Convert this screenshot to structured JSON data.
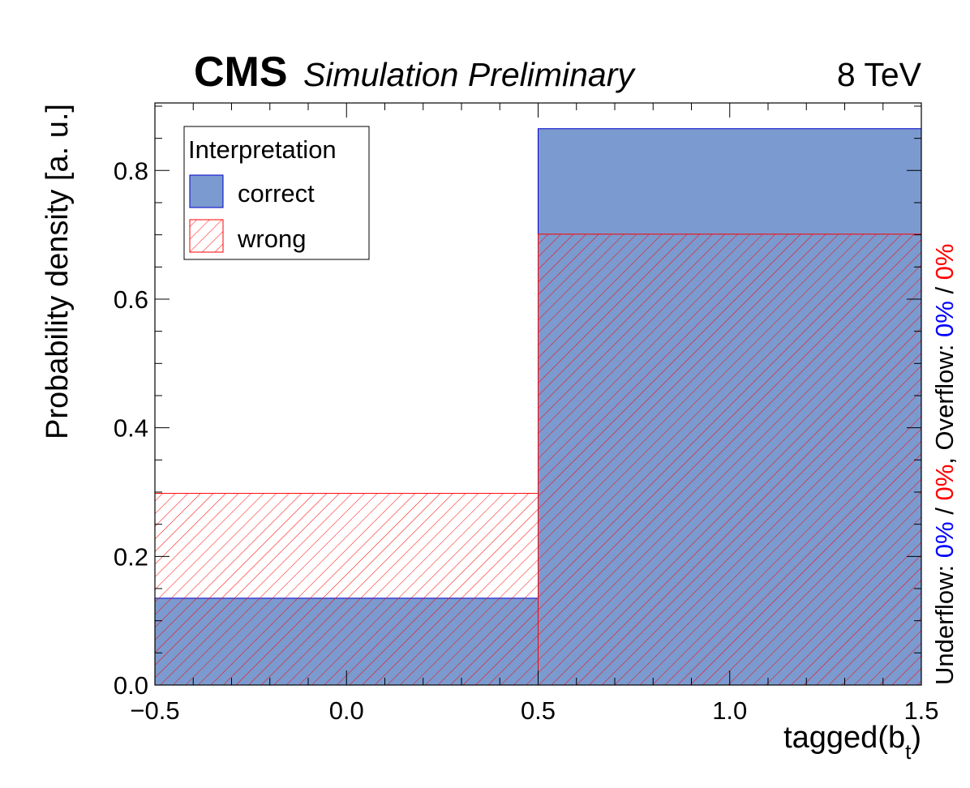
{
  "header": {
    "cms": "CMS",
    "subtitle": "Simulation Preliminary",
    "energy": "8 TeV"
  },
  "legend": {
    "title": "Interpretation",
    "position": "top-left"
  },
  "side_note": {
    "underflow_label": "Underflow: ",
    "underflow_correct": "0%",
    "underflow_sep": " / ",
    "underflow_wrong": "0%",
    "overflow_label": ",  Overflow: ",
    "overflow_correct": "0%",
    "overflow_sep": " / ",
    "overflow_wrong": "0%"
  },
  "colors": {
    "correct_fill": "#7b9acf",
    "correct_line": "#0000cc",
    "wrong_hatch": "#ff0000",
    "correct_text": "#0000ff",
    "wrong_text": "#ff0000"
  },
  "chart_data": {
    "type": "bar",
    "subtype": "histogram",
    "bin_edges": [
      -0.5,
      0.5,
      1.5
    ],
    "series": [
      {
        "name": "correct",
        "values": [
          0.135,
          0.865
        ],
        "style": "filled"
      },
      {
        "name": "wrong",
        "values": [
          0.298,
          0.701
        ],
        "style": "hatched"
      }
    ],
    "xlabel": "tagged(b",
    "xlabel_sub": "t",
    "xlabel_close": ")",
    "ylabel": "Probability density [a. u.]",
    "xlim": [
      -0.5,
      1.5
    ],
    "ylim": [
      0,
      0.905
    ],
    "xticks": [
      -0.5,
      0.0,
      0.5,
      1.0,
      1.5
    ],
    "xtick_labels": [
      "−0.5",
      "0.0",
      "0.5",
      "1.0",
      "1.5"
    ],
    "yticks": [
      0.0,
      0.2,
      0.4,
      0.6,
      0.8
    ],
    "ytick_labels": [
      "0.0",
      "0.2",
      "0.4",
      "0.6",
      "0.8"
    ],
    "grid": false
  }
}
